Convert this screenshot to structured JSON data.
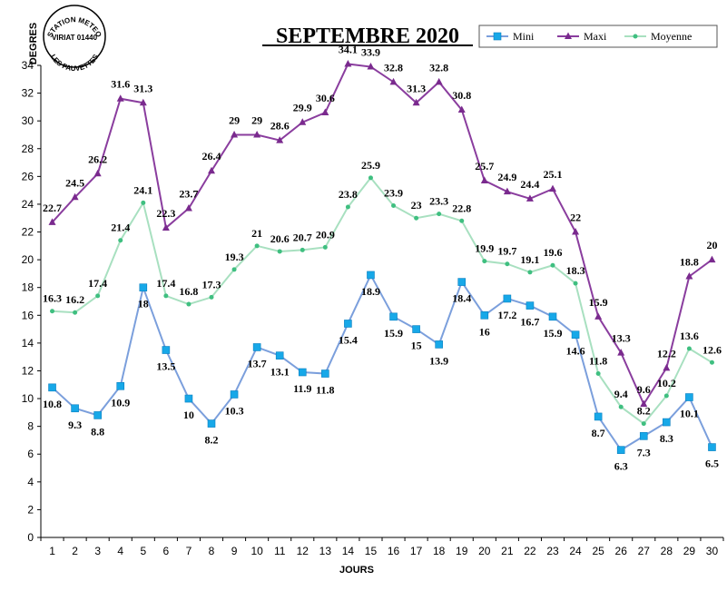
{
  "chart_data": {
    "type": "line",
    "title": "SEPTEMBRE 2020",
    "xlabel": "JOURS",
    "ylabel": "DEGRES",
    "x": [
      1,
      2,
      3,
      4,
      5,
      6,
      7,
      8,
      9,
      10,
      11,
      12,
      13,
      14,
      15,
      16,
      17,
      18,
      19,
      20,
      21,
      22,
      23,
      24,
      25,
      26,
      27,
      28,
      29,
      30
    ],
    "ylim": [
      0,
      34
    ],
    "yticks": [
      0,
      2,
      4,
      6,
      8,
      10,
      12,
      14,
      16,
      18,
      20,
      22,
      24,
      26,
      28,
      30,
      32,
      34
    ],
    "grid": false,
    "legend_position": "top-right",
    "series": [
      {
        "name": "Mini",
        "color": "#7b9fdc",
        "marker": "square",
        "marker_color": "#17a8e8",
        "values": [
          10.8,
          9.3,
          8.8,
          10.9,
          18,
          13.5,
          10,
          8.2,
          10.3,
          13.7,
          13.1,
          11.9,
          11.8,
          15.4,
          18.9,
          15.9,
          15,
          13.9,
          18.4,
          16,
          17.2,
          16.7,
          15.9,
          14.6,
          8.7,
          6.3,
          7.3,
          8.3,
          10.1,
          6.5
        ]
      },
      {
        "name": "Maxi",
        "color": "#8a3d9e",
        "marker": "triangle",
        "marker_color": "#7a2a8e",
        "values": [
          22.7,
          24.5,
          26.2,
          31.6,
          31.3,
          22.3,
          23.7,
          26.4,
          29,
          29,
          28.6,
          29.9,
          30.6,
          34.1,
          33.9,
          32.8,
          31.3,
          32.8,
          30.8,
          25.7,
          24.9,
          24.4,
          25.1,
          22,
          15.9,
          13.3,
          9.6,
          12.2,
          18.8,
          20
        ]
      },
      {
        "name": "Moyenne",
        "color": "#a8e0c0",
        "marker": "dot",
        "marker_color": "#3fbf80",
        "values": [
          16.3,
          16.2,
          17.4,
          21.4,
          24.1,
          17.4,
          16.8,
          17.3,
          19.3,
          21,
          20.6,
          20.7,
          20.9,
          23.8,
          25.9,
          23.9,
          23,
          23.3,
          22.8,
          19.9,
          19.7,
          19.1,
          19.6,
          18.3,
          11.8,
          9.4,
          8.2,
          10.2,
          13.6,
          12.6
        ]
      }
    ]
  },
  "logo": {
    "text_top": "STATION METEO",
    "text_mid": "VIRIAT 01440",
    "text_bottom": "LES FAUVETTES"
  }
}
